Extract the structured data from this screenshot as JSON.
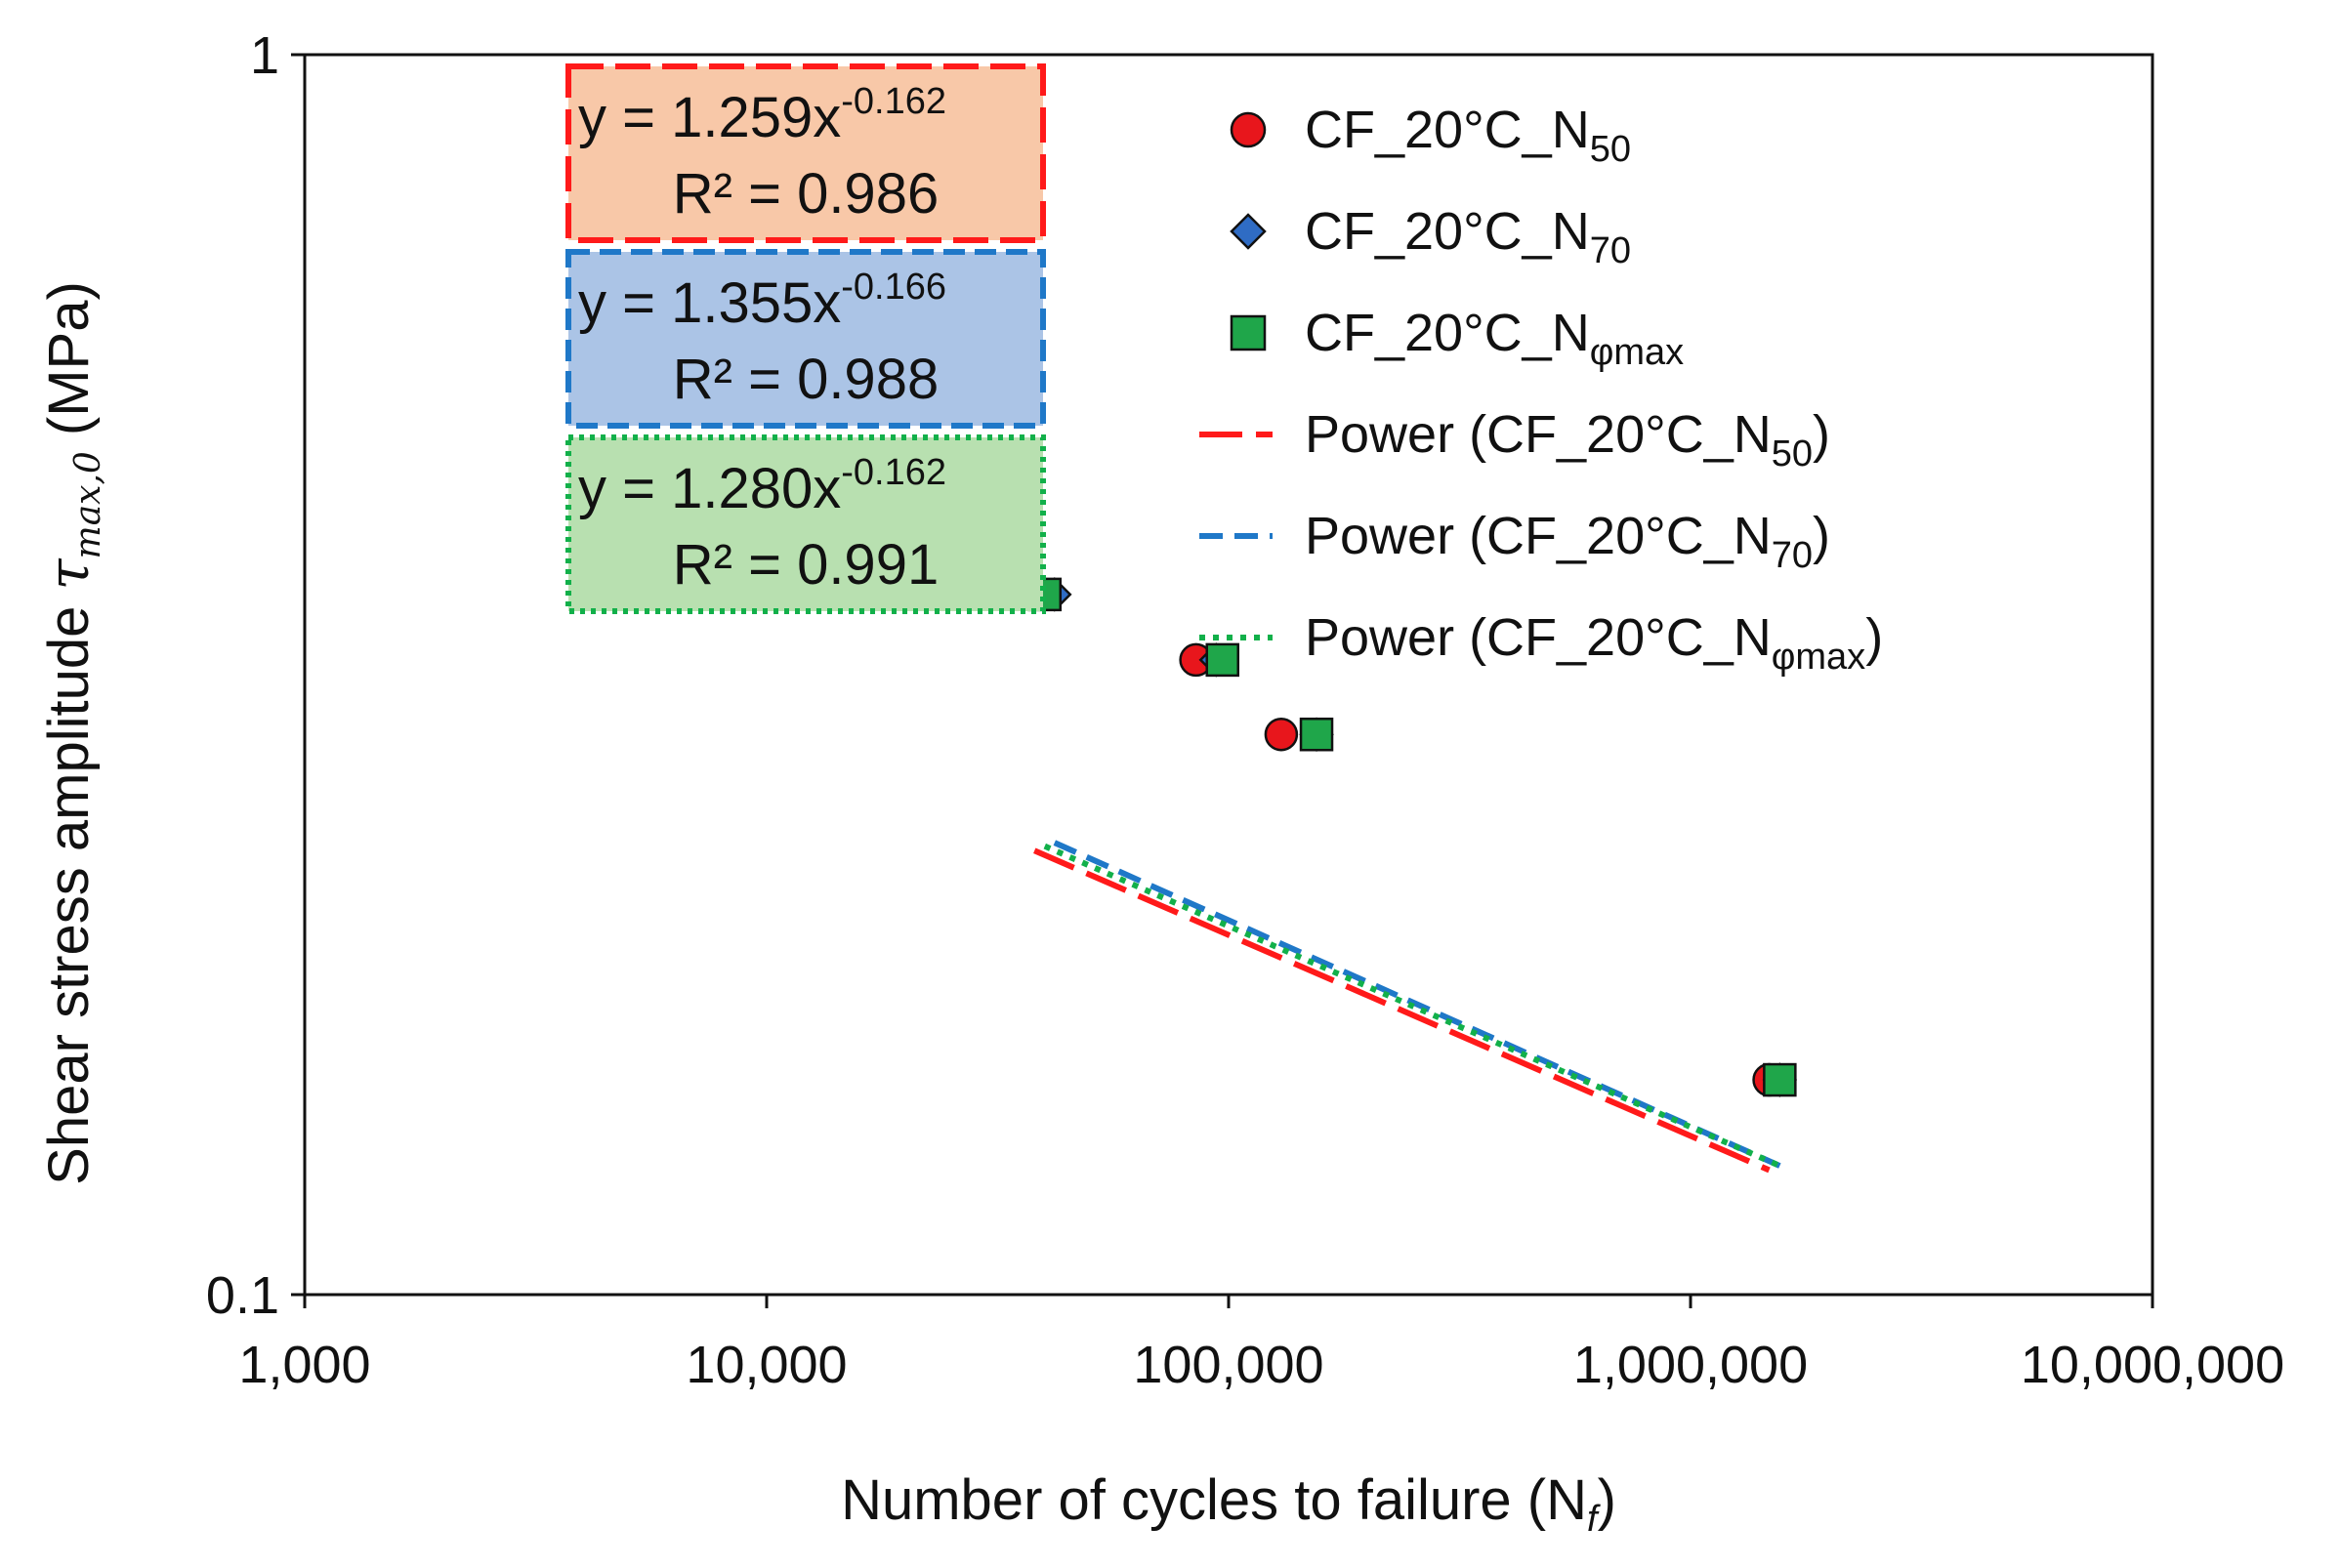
{
  "chart_data": {
    "type": "scatter",
    "x_scale": "log",
    "y_scale": "log",
    "xlim": [
      1000,
      10000000
    ],
    "ylim": [
      0.1,
      1
    ],
    "xlabel_main": "Number of cycles to failure (N",
    "xlabel_sub": "f",
    "xlabel_end": ")",
    "ylabel_main": "Shear stress amplitude ",
    "ylabel_tau": "τ",
    "ylabel_sub": "max,0",
    "ylabel_end": " (MPa)",
    "x_ticks": [
      {
        "value": 1000,
        "label": "1,000"
      },
      {
        "value": 10000,
        "label": "10,000"
      },
      {
        "value": 100000,
        "label": "100,000"
      },
      {
        "value": 1000000,
        "label": "1,000,000"
      },
      {
        "value": 10000000,
        "label": "10,000,000"
      }
    ],
    "y_ticks": [
      {
        "value": 0.1,
        "label": "0.1"
      },
      {
        "value": 1,
        "label": "1"
      }
    ],
    "series": [
      {
        "name": "CF_20°C_N50",
        "name_base": "CF_20°C_N",
        "name_sub": "50",
        "marker": "circle",
        "color": "#e8161c",
        "points": [
          [
            38000,
            0.367
          ],
          [
            85000,
            0.325
          ],
          [
            130000,
            0.283
          ],
          [
            1480000,
            0.149
          ]
        ]
      },
      {
        "name": "CF_20°C_N70",
        "name_base": "CF_20°C_N",
        "name_sub": "70",
        "marker": "diamond",
        "color": "#2f6cc4",
        "points": [
          [
            42000,
            0.367
          ],
          [
            94000,
            0.325
          ],
          [
            155000,
            0.283
          ],
          [
            1560000,
            0.149
          ]
        ]
      },
      {
        "name": "CF_20°C_Nφmax",
        "name_base": "CF_20°C_N",
        "name_sub": "φmax",
        "marker": "square",
        "color": "#1fa64a",
        "points": [
          [
            40000,
            0.367
          ],
          [
            97000,
            0.325
          ],
          [
            155000,
            0.283
          ],
          [
            1560000,
            0.149
          ]
        ]
      }
    ],
    "trendlines": [
      {
        "name": "Power (CF_20°C_N50)",
        "name_base": "Power (CF_20°C_N",
        "name_sub": "50",
        "name_end": ")",
        "a": 1.259,
        "b": -0.162,
        "color": "#ff1a1a",
        "dash": "long",
        "x_range": [
          38000,
          1480000
        ]
      },
      {
        "name": "Power (CF_20°C_N70)",
        "name_base": "Power (CF_20°C_N",
        "name_sub": "70",
        "name_end": ")",
        "a": 1.355,
        "b": -0.166,
        "color": "#1f78c8",
        "dash": "medium",
        "x_range": [
          42000,
          1560000
        ]
      },
      {
        "name": "Power (CF_20°C_Nφmax)",
        "name_base": "Power (CF_20°C_N",
        "name_sub": "φmax",
        "name_end": ")",
        "a": 1.28,
        "b": -0.162,
        "color": "#12b04a",
        "dash": "dot",
        "x_range": [
          40000,
          1560000
        ]
      }
    ],
    "equations": [
      {
        "eq": "y = 1.259x",
        "exp": "-0.162",
        "r2": "R² = 0.986",
        "fill": "#f8c8a8",
        "border": "#ff1a1a"
      },
      {
        "eq": "y = 1.355x",
        "exp": "-0.166",
        "r2": "R² = 0.988",
        "fill": "#abc4e6",
        "border": "#1f78c8"
      },
      {
        "eq": "y = 1.280x",
        "exp": "-0.162",
        "r2": "R² = 0.991",
        "fill": "#b8e0b0",
        "border": "#12b04a"
      }
    ],
    "legend_position": "top-right",
    "grid": false
  }
}
